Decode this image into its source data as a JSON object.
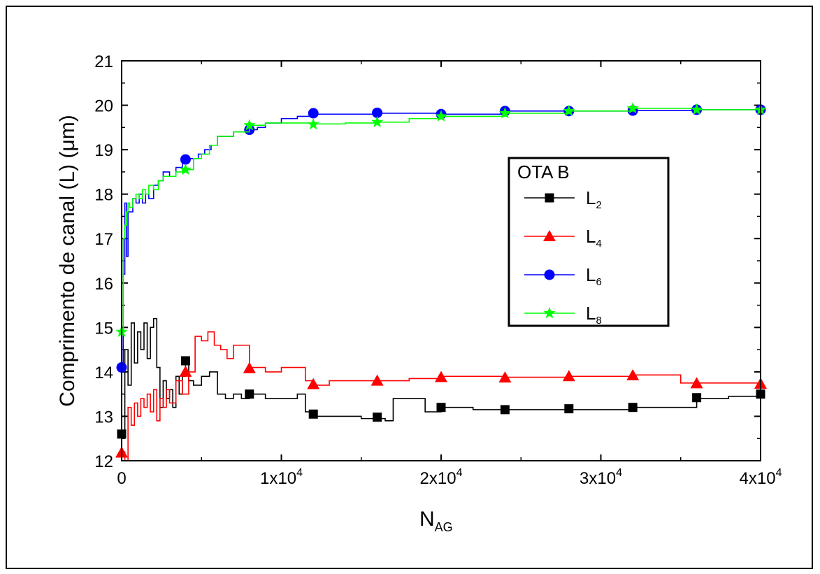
{
  "chart_data": {
    "type": "line",
    "title": "",
    "xlabel_main": "N",
    "xlabel_sub": "AG",
    "ylabel": "Comprimento de canal (L) (μm)",
    "xlim": [
      0,
      40000
    ],
    "ylim": [
      12,
      21
    ],
    "x_ticks": [
      {
        "value": 0,
        "base": "0",
        "exp": ""
      },
      {
        "value": 10000,
        "base": "1x10",
        "exp": "4"
      },
      {
        "value": 20000,
        "base": "2x10",
        "exp": "4"
      },
      {
        "value": 30000,
        "base": "3x10",
        "exp": "4"
      },
      {
        "value": 40000,
        "base": "4x10",
        "exp": "4"
      }
    ],
    "y_ticks": [
      12,
      13,
      14,
      15,
      16,
      17,
      18,
      19,
      20,
      21
    ],
    "legend": {
      "title": "OTA B",
      "position": "right-center"
    },
    "series": [
      {
        "name": "L",
        "sub": "2",
        "color": "#000000",
        "marker": "square",
        "x": [
          0,
          200,
          400,
          600,
          800,
          1000,
          1200,
          1400,
          1600,
          1800,
          2000,
          2200,
          2400,
          2600,
          2800,
          3000,
          3200,
          3400,
          3600,
          3800,
          4000,
          4200,
          4500,
          5000,
          5500,
          6000,
          6500,
          7000,
          7500,
          8000,
          9000,
          10000,
          11000,
          11500,
          12000,
          13000,
          14000,
          15000,
          16000,
          16500,
          17000,
          18000,
          19000,
          20000,
          22000,
          24000,
          26000,
          28000,
          30000,
          32000,
          34000,
          35500,
          36000,
          38000,
          40000
        ],
        "values": [
          12.6,
          14.5,
          13.7,
          15.1,
          14.2,
          14.9,
          14.5,
          15.1,
          14.3,
          15.0,
          15.2,
          14.1,
          13.2,
          13.8,
          13.4,
          13.6,
          13.2,
          13.9,
          13.5,
          13.9,
          14.2,
          13.8,
          13.7,
          13.9,
          14.0,
          13.5,
          13.4,
          13.5,
          13.4,
          13.5,
          13.4,
          13.4,
          13.5,
          13.1,
          13.0,
          13.0,
          13.0,
          12.95,
          12.95,
          12.9,
          13.4,
          13.4,
          13.1,
          13.2,
          13.15,
          13.15,
          13.15,
          13.15,
          13.15,
          13.2,
          13.2,
          13.2,
          13.4,
          13.45,
          13.5
        ],
        "marker_x": [
          0,
          4000,
          8000,
          12000,
          16000,
          20000,
          24000,
          28000,
          32000,
          36000,
          40000
        ],
        "marker_y": [
          12.6,
          14.25,
          13.5,
          13.05,
          12.98,
          13.2,
          13.15,
          13.17,
          13.2,
          13.42,
          13.5
        ]
      },
      {
        "name": "L",
        "sub": "4",
        "color": "#ff0000",
        "marker": "triangle",
        "x": [
          0,
          200,
          400,
          600,
          800,
          1000,
          1200,
          1400,
          1600,
          1800,
          2000,
          2200,
          2400,
          2600,
          2800,
          3000,
          3400,
          3800,
          4200,
          4600,
          5000,
          5400,
          5800,
          6200,
          6600,
          7000,
          7500,
          8000,
          9000,
          10000,
          11000,
          11500,
          12000,
          13000,
          14000,
          16000,
          18000,
          20000,
          24000,
          28000,
          32000,
          34500,
          35000,
          36000,
          40000
        ],
        "values": [
          12.2,
          12.0,
          13.2,
          12.8,
          13.3,
          13.0,
          13.4,
          13.2,
          13.5,
          13.1,
          13.6,
          12.9,
          13.4,
          13.2,
          13.6,
          13.3,
          13.8,
          13.5,
          14.0,
          14.8,
          14.7,
          14.9,
          14.6,
          14.5,
          14.3,
          14.6,
          14.6,
          14.1,
          14.0,
          14.1,
          14.1,
          13.8,
          13.7,
          13.8,
          13.8,
          13.8,
          13.85,
          13.9,
          13.88,
          13.9,
          13.93,
          13.93,
          13.75,
          13.75,
          13.73
        ],
        "marker_x": [
          0,
          4000,
          8000,
          12000,
          16000,
          20000,
          24000,
          28000,
          32000,
          36000,
          40000
        ],
        "marker_y": [
          12.18,
          14.0,
          14.08,
          13.72,
          13.8,
          13.88,
          13.87,
          13.9,
          13.92,
          13.74,
          13.73
        ]
      },
      {
        "name": "L",
        "sub": "6",
        "color": "#0000ff",
        "marker": "circle",
        "x": [
          0,
          100,
          200,
          300,
          400,
          500,
          700,
          900,
          1100,
          1300,
          1500,
          1700,
          2000,
          2300,
          2600,
          3000,
          3400,
          3800,
          4000,
          4400,
          4800,
          5200,
          5600,
          6000,
          6500,
          7000,
          7500,
          8000,
          8500,
          9000,
          10000,
          11000,
          12000,
          14000,
          16000,
          18000,
          20000,
          24000,
          28000,
          32000,
          36000,
          40000
        ],
        "values": [
          14.1,
          16.2,
          17.8,
          16.6,
          17.6,
          17.6,
          17.9,
          17.8,
          18.0,
          17.8,
          18.0,
          17.9,
          18.2,
          18.3,
          18.5,
          18.4,
          18.6,
          18.7,
          18.8,
          18.8,
          18.9,
          19.0,
          19.1,
          19.3,
          19.3,
          19.4,
          19.4,
          19.45,
          19.5,
          19.6,
          19.7,
          19.75,
          19.8,
          19.8,
          19.82,
          19.82,
          19.8,
          19.87,
          19.87,
          19.88,
          19.9,
          19.9
        ],
        "marker_x": [
          0,
          4000,
          8000,
          12000,
          16000,
          20000,
          24000,
          28000,
          32000,
          36000,
          40000
        ],
        "marker_y": [
          14.1,
          18.78,
          19.45,
          19.82,
          19.83,
          19.8,
          19.87,
          19.87,
          19.88,
          19.9,
          19.9
        ],
        "legend_marker_hint": "filled circle"
      },
      {
        "name": "L",
        "sub": "8",
        "color": "#00ff00",
        "marker": "star",
        "x": [
          0,
          100,
          200,
          300,
          400,
          500,
          700,
          900,
          1100,
          1300,
          1500,
          1700,
          2000,
          2300,
          2600,
          3000,
          3400,
          3800,
          4000,
          4500,
          5000,
          5500,
          6000,
          7000,
          8000,
          9000,
          10000,
          11000,
          12000,
          14000,
          16000,
          18000,
          20000,
          24000,
          28000,
          32000,
          36000,
          40000
        ],
        "values": [
          14.9,
          17.0,
          17.3,
          17.6,
          17.8,
          17.7,
          17.9,
          18.0,
          17.9,
          18.1,
          18.0,
          18.2,
          18.1,
          18.3,
          18.4,
          18.4,
          18.5,
          18.55,
          18.55,
          18.8,
          18.9,
          19.1,
          19.3,
          19.4,
          19.55,
          19.6,
          19.6,
          19.6,
          19.58,
          19.6,
          19.62,
          19.7,
          19.75,
          19.82,
          19.87,
          19.93,
          19.9,
          19.9
        ],
        "marker_x": [
          0,
          4000,
          8000,
          12000,
          16000,
          20000,
          24000,
          28000,
          32000,
          36000,
          40000
        ],
        "marker_y": [
          14.9,
          18.55,
          19.55,
          19.57,
          19.62,
          19.75,
          19.82,
          19.87,
          19.93,
          19.9,
          19.9
        ]
      }
    ]
  }
}
